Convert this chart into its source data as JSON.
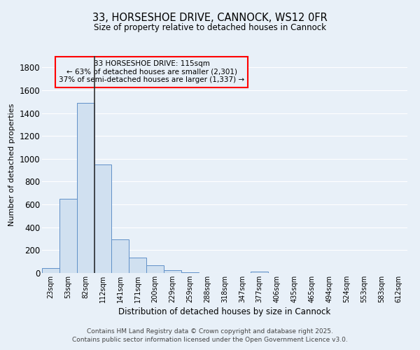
{
  "title_line1": "33, HORSESHOE DRIVE, CANNOCK, WS12 0FR",
  "title_line2": "Size of property relative to detached houses in Cannock",
  "xlabel": "Distribution of detached houses by size in Cannock",
  "ylabel": "Number of detached properties",
  "footer_line1": "Contains HM Land Registry data © Crown copyright and database right 2025.",
  "footer_line2": "Contains public sector information licensed under the Open Government Licence v3.0.",
  "bar_color": "#d0e0f0",
  "bar_edge_color": "#6090c8",
  "background_color": "#e8f0f8",
  "grid_color": "#ffffff",
  "bins": [
    "23sqm",
    "53sqm",
    "82sqm",
    "112sqm",
    "141sqm",
    "171sqm",
    "200sqm",
    "229sqm",
    "259sqm",
    "288sqm",
    "318sqm",
    "347sqm",
    "377sqm",
    "406sqm",
    "435sqm",
    "465sqm",
    "494sqm",
    "524sqm",
    "553sqm",
    "583sqm",
    "612sqm"
  ],
  "values": [
    45,
    650,
    1490,
    950,
    295,
    135,
    65,
    22,
    5,
    0,
    0,
    0,
    12,
    0,
    0,
    0,
    0,
    0,
    0,
    0,
    0
  ],
  "ylim": [
    0,
    1900
  ],
  "yticks": [
    0,
    200,
    400,
    600,
    800,
    1000,
    1200,
    1400,
    1600,
    1800
  ],
  "vline_x": 2.5,
  "vline_color": "#333333",
  "annotation_line1": "33 HORSESHOE DRIVE: 115sqm",
  "annotation_line2": "← 63% of detached houses are smaller (2,301)",
  "annotation_line3": "37% of semi-detached houses are larger (1,337) →",
  "annot_box_color": "#e8f0f8",
  "annot_edge_color": "red"
}
